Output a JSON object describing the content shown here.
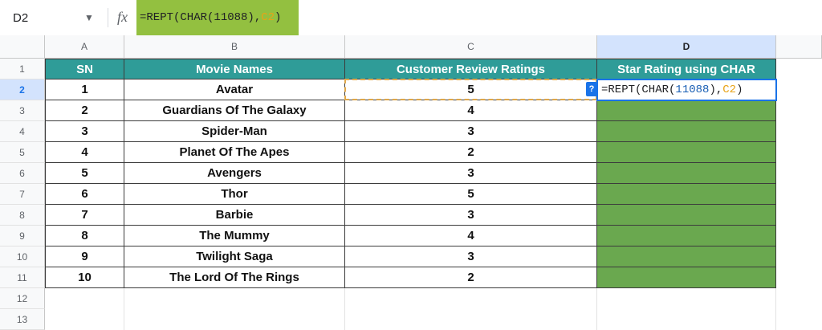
{
  "formula_bar": {
    "name_box": "D2",
    "fx_label": "fx",
    "formula_prefix": "=REPT(CHAR(11088),",
    "formula_ref": "C2",
    "formula_suffix": ")"
  },
  "columns": [
    {
      "letter": "A"
    },
    {
      "letter": "B"
    },
    {
      "letter": "C"
    },
    {
      "letter": "D"
    }
  ],
  "row_numbers": [
    "1",
    "2",
    "3",
    "4",
    "5",
    "6",
    "7",
    "8",
    "9",
    "10",
    "11",
    "12",
    "13"
  ],
  "table": {
    "headers": [
      "SN",
      "Movie Names",
      "Customer Review Ratings",
      "Star Rating using CHAR"
    ],
    "rows": [
      [
        "1",
        "Avatar",
        "5"
      ],
      [
        "2",
        "Guardians Of The Galaxy",
        "4"
      ],
      [
        "3",
        "Spider-Man",
        "3"
      ],
      [
        "4",
        "Planet Of The Apes",
        "2"
      ],
      [
        "5",
        "Avengers",
        "3"
      ],
      [
        "6",
        "Thor",
        "5"
      ],
      [
        "7",
        "Barbie",
        "3"
      ],
      [
        "8",
        "The Mummy",
        "4"
      ],
      [
        "9",
        "Twilight Saga",
        "3"
      ],
      [
        "10",
        "The Lord Of The Rings",
        "2"
      ]
    ]
  },
  "editing_cell": {
    "p1": "=REPT(CHAR(",
    "p2": "11088",
    "p3": "),",
    "p4": "C2",
    "p5": ")",
    "help": "?"
  },
  "colors": {
    "header_fill": "#2f9c98",
    "result_fill": "#6aa84f",
    "formula_highlight": "#93c040",
    "selection_blue": "#1a73e8"
  }
}
